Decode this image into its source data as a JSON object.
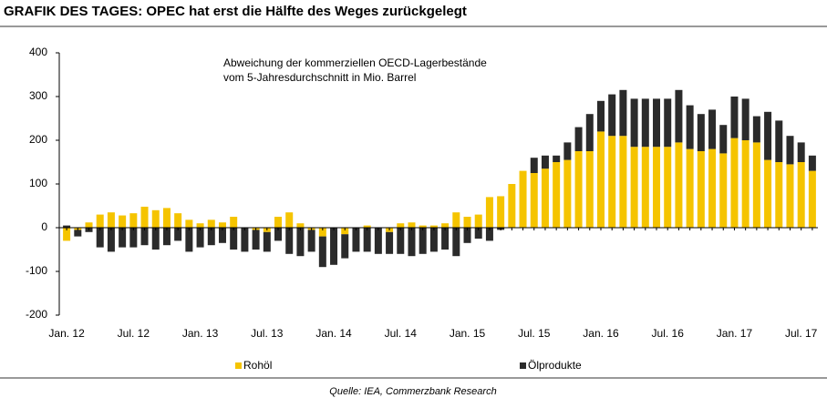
{
  "chart_data": {
    "type": "bar",
    "stacked": true,
    "title": "GRAFIK DES TAGES: OPEC hat erst die Hälfte des Weges zurückgelegt",
    "annotation": [
      "Abweichung der kommerziellen OECD-Lagerbestände",
      "vom 5-Jahresdurchschnitt in Mio. Barrel"
    ],
    "source": "Quelle: IEA, Commerzbank Research",
    "categories": [
      "Jan. 12",
      null,
      null,
      null,
      null,
      null,
      "Jul. 12",
      null,
      null,
      null,
      null,
      null,
      "Jan. 13",
      null,
      null,
      null,
      null,
      null,
      "Jul. 13",
      null,
      null,
      null,
      null,
      null,
      "Jan. 14",
      null,
      null,
      null,
      null,
      null,
      "Jul. 14",
      null,
      null,
      null,
      null,
      null,
      "Jan. 15",
      null,
      null,
      null,
      null,
      null,
      "Jul. 15",
      null,
      null,
      null,
      null,
      null,
      "Jan. 16",
      null,
      null,
      null,
      null,
      null,
      "Jul. 16",
      null,
      null,
      null,
      null,
      null,
      "Jan. 17",
      null,
      null,
      null,
      null,
      null,
      "Jul. 17",
      null
    ],
    "series": [
      {
        "name": "Rohöl",
        "color": "#f5c400",
        "values": [
          -30,
          -5,
          12,
          30,
          35,
          28,
          33,
          48,
          40,
          45,
          33,
          18,
          10,
          18,
          12,
          25,
          0,
          -5,
          -10,
          25,
          35,
          10,
          -5,
          -20,
          0,
          -15,
          0,
          5,
          0,
          -10,
          10,
          12,
          5,
          5,
          10,
          35,
          25,
          30,
          70,
          72,
          100,
          130,
          125,
          135,
          150,
          155,
          175,
          175,
          220,
          210,
          210,
          185,
          185,
          185,
          185,
          195,
          180,
          175,
          180,
          170,
          205,
          200,
          195,
          155,
          150,
          145,
          150,
          130
        ]
      },
      {
        "name": "Ölprodukte",
        "color": "#2b2b2b",
        "values": [
          5,
          -15,
          -10,
          -45,
          -55,
          -45,
          -45,
          -40,
          -50,
          -40,
          -30,
          -55,
          -45,
          -40,
          -35,
          -50,
          -55,
          -45,
          -45,
          -30,
          -60,
          -65,
          -50,
          -70,
          -85,
          -55,
          -55,
          -55,
          -60,
          -50,
          -60,
          -65,
          -60,
          -55,
          -50,
          -65,
          -35,
          -25,
          -30,
          -5,
          0,
          0,
          35,
          30,
          15,
          40,
          55,
          85,
          70,
          95,
          105,
          110,
          110,
          110,
          110,
          120,
          100,
          85,
          90,
          65,
          95,
          95,
          60,
          110,
          95,
          65,
          45,
          35
        ]
      }
    ],
    "ylim": [
      -200,
      400
    ],
    "yticks": [
      -200,
      -100,
      0,
      100,
      200,
      300,
      400
    ]
  }
}
